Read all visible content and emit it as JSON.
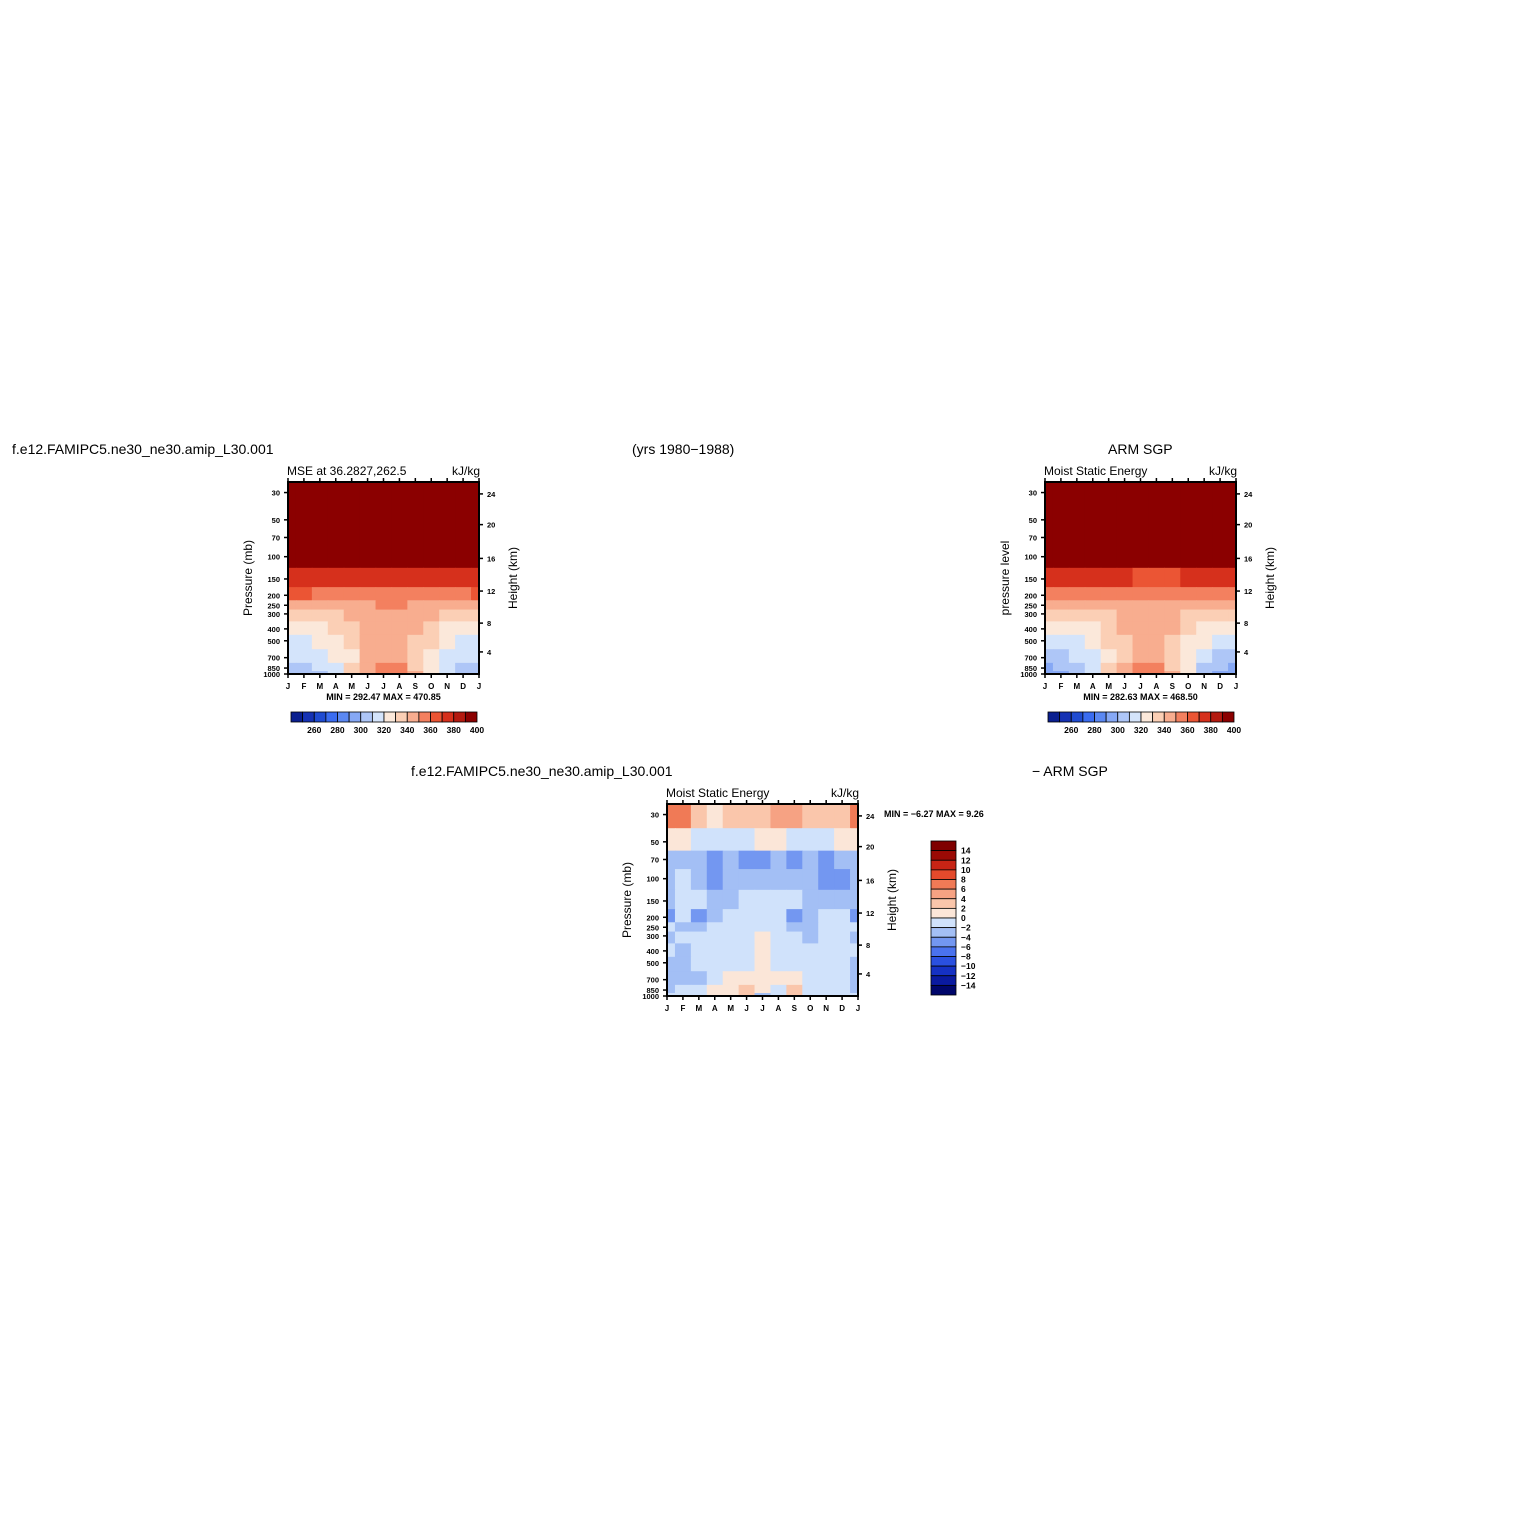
{
  "header": {
    "case_name": "f.e12.FAMIPC5.ne30_ne30.amip_L30.001",
    "years": "(yrs 1980−1988)",
    "obs_name": "ARM SGP",
    "diff_left": "f.e12.FAMIPC5.ne30_ne30.amip_L30.001",
    "diff_right": "− ARM SGP"
  },
  "colors": {
    "mse_scale": [
      "#0a1f8f",
      "#1532b4",
      "#1f4bd1",
      "#3a6cf0",
      "#5b88f2",
      "#86a8f5",
      "#aec6f7",
      "#d4e4fb",
      "#fbe8da",
      "#fbcfb5",
      "#f8ad8f",
      "#f3805f",
      "#eb5534",
      "#d6301c",
      "#b41a10",
      "#8b0000"
    ],
    "diff_scale": [
      "#00066b",
      "#0a1aa0",
      "#1531c4",
      "#2a50e0",
      "#4a72ee",
      "#7397f1",
      "#a3bff5",
      "#d0e2fb",
      "#fbe6d8",
      "#fac6ab",
      "#f6a283",
      "#f07a56",
      "#e44a2c",
      "#c72415",
      "#9b0a05",
      "#7f0000"
    ]
  },
  "chart_data": [
    {
      "type": "heatmap",
      "title": "MSE at 36.2827,262.5",
      "units": "kJ/kg",
      "ylabel": "Pressure (mb)",
      "ylabel_right": "Height (km)",
      "x_ticks": [
        "J",
        "F",
        "M",
        "A",
        "M",
        "J",
        "J",
        "A",
        "S",
        "O",
        "N",
        "D",
        "J"
      ],
      "y_ticks": [
        "30",
        "50",
        "70",
        "100",
        "150",
        "200",
        "250",
        "300",
        "400",
        "500",
        "700",
        "850",
        "1000"
      ],
      "y_ticks_right": [
        "24",
        "20",
        "16",
        "12",
        "8",
        "4"
      ],
      "minmax_text": "MIN = 292.47 MAX = 470.85",
      "colorbar_labels": [
        "260",
        "280",
        "300",
        "320",
        "340",
        "360",
        "380",
        "400"
      ],
      "levels": [
        240,
        250,
        260,
        270,
        280,
        290,
        300,
        310,
        320,
        330,
        340,
        350,
        360,
        370,
        380,
        390,
        400
      ],
      "rows": [
        [
          470,
          470,
          470,
          470,
          470,
          470,
          470,
          470,
          470,
          470,
          470,
          470,
          470
        ],
        [
          440,
          440,
          440,
          440,
          440,
          440,
          440,
          440,
          440,
          440,
          440,
          440,
          440
        ],
        [
          415,
          414,
          413,
          412,
          411,
          410,
          409,
          409,
          409,
          410,
          411,
          413,
          415
        ],
        [
          392,
          391,
          390,
          389,
          387,
          385,
          384,
          384,
          384,
          385,
          387,
          390,
          392
        ],
        [
          370,
          369,
          368,
          367,
          365,
          363,
          362,
          362,
          362,
          363,
          365,
          368,
          370
        ],
        [
          352,
          351,
          350,
          349,
          348,
          347,
          345,
          345,
          345,
          346,
          348,
          350,
          352
        ],
        [
          338,
          338,
          338,
          338,
          339,
          340,
          341,
          341,
          340,
          339,
          338,
          338,
          338
        ],
        [
          325,
          325,
          326,
          328,
          331,
          335,
          338,
          339,
          336,
          331,
          327,
          325,
          325
        ],
        [
          316,
          316,
          318,
          322,
          327,
          333,
          337,
          338,
          333,
          326,
          320,
          316,
          316
        ],
        [
          310,
          310,
          312,
          316,
          323,
          331,
          337,
          337,
          330,
          322,
          314,
          310,
          310
        ],
        [
          302,
          302,
          305,
          311,
          320,
          332,
          338,
          338,
          328,
          316,
          307,
          302,
          302
        ],
        [
          296,
          297,
          301,
          309,
          322,
          336,
          342,
          342,
          330,
          313,
          303,
          297,
          296
        ],
        [
          293,
          294,
          300,
          310,
          326,
          340,
          347,
          347,
          334,
          314,
          301,
          294,
          293
        ]
      ]
    },
    {
      "type": "heatmap",
      "title": "Moist Static Energy",
      "units": "kJ/kg",
      "ylabel": "pressure level",
      "ylabel_right": "Height (km)",
      "x_ticks": [
        "J",
        "F",
        "M",
        "A",
        "M",
        "J",
        "J",
        "A",
        "S",
        "O",
        "N",
        "D",
        "J"
      ],
      "y_ticks": [
        "30",
        "50",
        "70",
        "100",
        "150",
        "200",
        "250",
        "300",
        "400",
        "500",
        "700",
        "850",
        "1000"
      ],
      "y_ticks_right": [
        "24",
        "20",
        "16",
        "12",
        "8",
        "4"
      ],
      "minmax_text": "MIN = 282.63 MAX = 468.50",
      "colorbar_labels": [
        "260",
        "280",
        "300",
        "320",
        "340",
        "360",
        "380",
        "400"
      ],
      "levels": [
        240,
        250,
        260,
        270,
        280,
        290,
        300,
        310,
        320,
        330,
        340,
        350,
        360,
        370,
        380,
        390,
        400
      ],
      "rows": [
        [
          468,
          468,
          468,
          468,
          468,
          468,
          468,
          468,
          468,
          468,
          468,
          468,
          468
        ],
        [
          438,
          438,
          438,
          438,
          438,
          438,
          438,
          438,
          438,
          438,
          438,
          438,
          438
        ],
        [
          413,
          412,
          411,
          410,
          409,
          408,
          407,
          407,
          407,
          408,
          409,
          411,
          413
        ],
        [
          390,
          389,
          388,
          387,
          385,
          383,
          382,
          382,
          382,
          383,
          385,
          388,
          390
        ],
        [
          368,
          367,
          366,
          365,
          363,
          361,
          360,
          360,
          360,
          361,
          363,
          366,
          368
        ],
        [
          350,
          349,
          348,
          347,
          346,
          345,
          343,
          343,
          343,
          344,
          346,
          348,
          350
        ],
        [
          336,
          336,
          336,
          336,
          337,
          338,
          339,
          339,
          338,
          337,
          336,
          336,
          336
        ],
        [
          323,
          323,
          324,
          326,
          329,
          333,
          336,
          337,
          334,
          329,
          325,
          323,
          323
        ],
        [
          314,
          314,
          316,
          320,
          325,
          331,
          335,
          336,
          331,
          324,
          318,
          314,
          314
        ],
        [
          308,
          308,
          310,
          314,
          321,
          329,
          335,
          335,
          328,
          320,
          312,
          308,
          308
        ],
        [
          299,
          300,
          303,
          309,
          318,
          330,
          336,
          336,
          326,
          314,
          305,
          300,
          299
        ],
        [
          290,
          292,
          298,
          308,
          321,
          335,
          341,
          341,
          328,
          311,
          300,
          292,
          290
        ],
        [
          283,
          286,
          296,
          309,
          325,
          340,
          349,
          349,
          333,
          311,
          297,
          286,
          283
        ]
      ]
    },
    {
      "type": "heatmap",
      "title": "Moist Static Energy",
      "units": "kJ/kg",
      "ylabel": "Pressure (mb)",
      "ylabel_right": "Height (km)",
      "x_ticks": [
        "J",
        "F",
        "M",
        "A",
        "M",
        "J",
        "J",
        "A",
        "S",
        "O",
        "N",
        "D",
        "J"
      ],
      "y_ticks": [
        "30",
        "50",
        "70",
        "100",
        "150",
        "200",
        "250",
        "300",
        "400",
        "500",
        "700",
        "850",
        "1000"
      ],
      "y_ticks_right": [
        "24",
        "20",
        "16",
        "12",
        "8",
        "4"
      ],
      "minmax_text": "MIN =    −6.27  MAX =      9.26",
      "colorbar_labels": [
        "14",
        "12",
        "10",
        "8",
        "6",
        "4",
        "2",
        "0",
        "−2",
        "−4",
        "−6",
        "−8",
        "−10",
        "−12",
        "−14"
      ],
      "levels": [
        -14,
        -12,
        -10,
        -8,
        -6,
        -4,
        -2,
        0,
        2,
        4,
        6,
        8,
        10,
        12,
        14
      ],
      "rows": [
        [
          6.5,
          7.2,
          3.0,
          1.8,
          2.2,
          3.0,
          2.4,
          4.1,
          4.8,
          2.6,
          2.2,
          4.0,
          6.5
        ],
        [
          1.0,
          1.2,
          -0.8,
          -0.6,
          -0.5,
          -0.2,
          0.5,
          0.3,
          -0.3,
          -0.5,
          -0.8,
          0.5,
          1.0
        ],
        [
          -3.2,
          -2.5,
          -3.2,
          -4.6,
          -3.8,
          -5.3,
          -4.5,
          -3.2,
          -4.0,
          -2.9,
          -4.2,
          -3.9,
          -3.2
        ],
        [
          -2.8,
          -1.8,
          -2.2,
          -4.2,
          -3.0,
          -3.2,
          -2.6,
          -2.5,
          -2.8,
          -3.0,
          -4.4,
          -4.1,
          -2.8
        ],
        [
          -3.5,
          -1.5,
          -1.2,
          -2.8,
          -2.2,
          -1.6,
          -0.8,
          -0.6,
          -1.2,
          -3.0,
          -3.8,
          -3.6,
          -3.5
        ],
        [
          -4.0,
          -1.4,
          -4.0,
          -2.3,
          -1.5,
          -1.2,
          -1.4,
          -1.8,
          -4.1,
          -2.4,
          -1.9,
          -1.5,
          -4.0
        ],
        [
          -1.4,
          -2.5,
          -2.0,
          -1.6,
          -1.2,
          -1.1,
          -1.8,
          -1.6,
          -2.0,
          -2.3,
          -1.5,
          -1.6,
          -1.4
        ],
        [
          -2.6,
          -1.5,
          -1.2,
          -1.0,
          -1.2,
          -0.8,
          0.4,
          -0.4,
          -1.0,
          -2.1,
          -1.2,
          -1.3,
          -2.6
        ],
        [
          -1.5,
          -2.0,
          -1.2,
          -1.0,
          -0.6,
          -1.2,
          0.8,
          -0.3,
          -0.8,
          -1.5,
          -1.3,
          -1.2,
          -1.5
        ],
        [
          -2.5,
          -2.2,
          -1.2,
          -0.6,
          -0.9,
          -0.5,
          1.0,
          -0.3,
          -0.7,
          -1.9,
          -1.0,
          -1.0,
          -2.5
        ],
        [
          -2.8,
          -2.5,
          -2.0,
          -1.0,
          0.8,
          0.6,
          1.2,
          0.9,
          0.5,
          -1.8,
          -1.5,
          -1.8,
          -2.8
        ],
        [
          -2.2,
          -1.5,
          -1.0,
          0.3,
          1.5,
          2.4,
          0.4,
          -0.6,
          2.6,
          -1.2,
          -0.8,
          -1.8,
          -2.2
        ],
        [
          -1.5,
          -1.2,
          -0.5,
          1.0,
          2.0,
          3.5,
          -2.5,
          -1.0,
          3.2,
          -0.6,
          -0.5,
          -1.2,
          -1.5
        ]
      ]
    }
  ]
}
